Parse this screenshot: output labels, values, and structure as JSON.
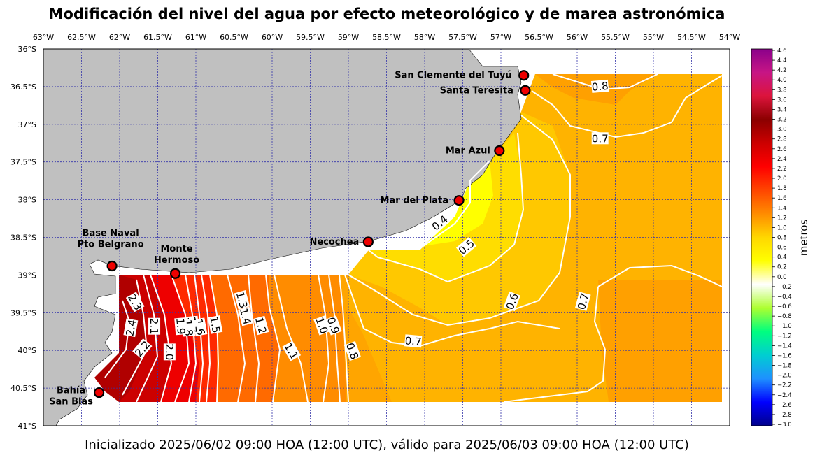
{
  "title": "Modificación del nivel del agua por efecto meteorológico y de marea astronómica",
  "footer": "Inicializado 2025/06/02 09:00 HOA (12:00 UTC), válido para 2025/06/03 09:00 HOA (12:00 UTC)",
  "lon_ticks": [
    "63°W",
    "62.5°W",
    "62°W",
    "61.5°W",
    "61°W",
    "60.5°W",
    "60°W",
    "59.5°W",
    "59°W",
    "58.5°W",
    "58°W",
    "57.5°W",
    "57°W",
    "56.5°W",
    "56°W",
    "55.5°W",
    "55°W",
    "54.5°W",
    "54°W"
  ],
  "lat_ticks": [
    "36°S",
    "36.5°S",
    "37°S",
    "37.5°S",
    "38°S",
    "38.5°S",
    "39°S",
    "39.5°S",
    "40°S",
    "40.5°S",
    "41°S"
  ],
  "colorbar": {
    "label": "metros",
    "ticks": [
      "4.6",
      "4.4",
      "4.2",
      "4.0",
      "3.8",
      "3.6",
      "3.4",
      "3.2",
      "3.0",
      "2.8",
      "2.6",
      "2.4",
      "2.2",
      "2.0",
      "1.8",
      "1.6",
      "1.4",
      "1.2",
      "1.0",
      "0.8",
      "0.6",
      "0.4",
      "0.2",
      "0.0",
      "−0.2",
      "−0.4",
      "−0.6",
      "−0.8",
      "−1.0",
      "−1.2",
      "−1.4",
      "−1.6",
      "−1.8",
      "−2.0",
      "−2.2",
      "−2.4",
      "−2.6",
      "−2.8",
      "−3.0"
    ],
    "stops": [
      "#8b008b",
      "#c71585",
      "#dc143c",
      "#8b0000",
      "#cc0000",
      "#ff0000",
      "#ff4500",
      "#ff8c00",
      "#ffd700",
      "#ffff00",
      "#ffffff",
      "#adff2f",
      "#00ff7f",
      "#00ced1",
      "#1e90ff",
      "#0000ff",
      "#00008b"
    ]
  },
  "stations": [
    {
      "name": "San Clemente del Tuyú",
      "lines": [
        "San Clemente del Tuyú"
      ],
      "lon": -56.7,
      "lat": -36.35
    },
    {
      "name": "Santa Teresita",
      "lines": [
        "Santa Teresita"
      ],
      "lon": -56.68,
      "lat": -36.55
    },
    {
      "name": "Mar Azul",
      "lines": [
        "Mar Azul"
      ],
      "lon": -57.02,
      "lat": -37.35
    },
    {
      "name": "Mar del Plata",
      "lines": [
        "Mar del Plata"
      ],
      "lon": -57.55,
      "lat": -38.01
    },
    {
      "name": "Necochea",
      "lines": [
        "Necochea"
      ],
      "lon": -58.74,
      "lat": -38.56
    },
    {
      "name": "Monte Hermoso",
      "lines": [
        "Monte",
        "Hermoso"
      ],
      "lon": -61.27,
      "lat": -38.98
    },
    {
      "name": "Base Naval Pto Belgrano",
      "lines": [
        "Base Naval",
        "Pto Belgrano"
      ],
      "lon": -62.1,
      "lat": -38.88
    },
    {
      "name": "Bahía San Blas",
      "lines": [
        "Bahía",
        "San Blas"
      ],
      "lon": -62.27,
      "lat": -40.56
    }
  ],
  "contour_labels": [
    {
      "text": "0.8",
      "lon": -55.7,
      "lat": -36.5,
      "rot": -5
    },
    {
      "text": "0.7",
      "lon": -55.7,
      "lat": -37.19,
      "rot": 0
    },
    {
      "text": "0.4",
      "lon": -57.8,
      "lat": -38.31,
      "rot": -40
    },
    {
      "text": "0.5",
      "lon": -57.45,
      "lat": -38.63,
      "rot": -40
    },
    {
      "text": "0.6",
      "lon": -56.85,
      "lat": -39.35,
      "rot": -70
    },
    {
      "text": "0.7",
      "lon": -55.92,
      "lat": -39.35,
      "rot": -75
    },
    {
      "text": "0.7",
      "lon": -58.15,
      "lat": -39.88,
      "rot": 5
    },
    {
      "text": "0.8",
      "lon": -58.95,
      "lat": -40.01,
      "rot": 70
    },
    {
      "text": "0.9",
      "lon": -59.2,
      "lat": -39.67,
      "rot": 70
    },
    {
      "text": "1.0",
      "lon": -59.35,
      "lat": -39.67,
      "rot": 70
    },
    {
      "text": "1.1",
      "lon": -59.75,
      "lat": -40.01,
      "rot": 60
    },
    {
      "text": "1.2",
      "lon": -60.15,
      "lat": -39.67,
      "rot": 75
    },
    {
      "text": "1.3",
      "lon": -60.4,
      "lat": -39.33,
      "rot": 75
    },
    {
      "text": "1.4",
      "lon": -60.35,
      "lat": -39.55,
      "rot": 75
    },
    {
      "text": "1.5",
      "lon": -60.75,
      "lat": -39.66,
      "rot": 80
    },
    {
      "text": "1.6",
      "lon": -60.95,
      "lat": -39.69,
      "rot": 80
    },
    {
      "text": "1.7",
      "lon": -61.05,
      "lat": -39.66,
      "rot": 85
    },
    {
      "text": "1.8",
      "lon": -61.1,
      "lat": -39.7,
      "rot": 85
    },
    {
      "text": "1.9",
      "lon": -61.2,
      "lat": -39.68,
      "rot": 85
    },
    {
      "text": "2.0",
      "lon": -61.35,
      "lat": -40.02,
      "rot": 90
    },
    {
      "text": "2.1",
      "lon": -61.55,
      "lat": -39.68,
      "rot": 90
    },
    {
      "text": "2.2",
      "lon": -61.7,
      "lat": -39.98,
      "rot": -50
    },
    {
      "text": "2.3",
      "lon": -61.8,
      "lat": -39.36,
      "rot": 60
    },
    {
      "text": "2.4",
      "lon": -61.85,
      "lat": -39.7,
      "rot": -80
    }
  ]
}
